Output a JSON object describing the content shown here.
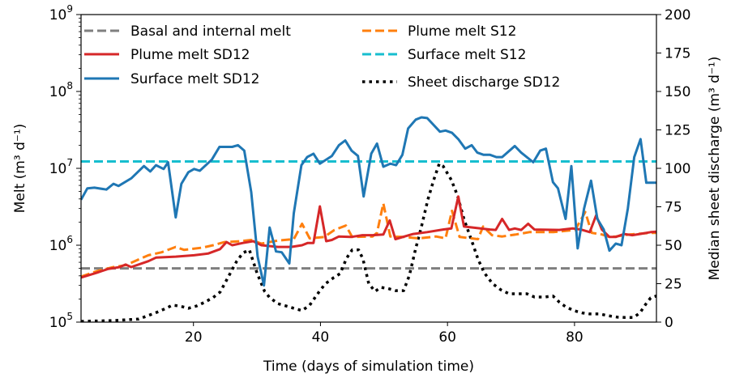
{
  "chart_data": {
    "type": "line",
    "xlabel": "Time (days of simulation time)",
    "ylabel": "Melt (m³ d⁻¹)",
    "ylabel_right": "Median sheet discharge (m³ d⁻¹)",
    "xlim": [
      2.3,
      92.9
    ],
    "ylim": [
      100000,
      1000000000
    ],
    "yscale": "log",
    "ylim_right": [
      0,
      200
    ],
    "xticks": [
      20,
      40,
      60,
      80
    ],
    "yticks": [
      5,
      6,
      7,
      8,
      9
    ],
    "yticks_right": [
      0,
      25,
      50,
      75,
      100,
      125,
      150,
      175,
      200
    ],
    "grid": false,
    "legend_placement": "top",
    "series": [
      {
        "name": "Basal and internal melt",
        "axis": "left",
        "color": "#7f7f7f",
        "style": "dashed",
        "points": [
          [
            2.3,
            500000
          ],
          [
            92.9,
            500000
          ]
        ]
      },
      {
        "name": "Plume melt SD12",
        "axis": "left",
        "color": "#d62728",
        "style": "solid",
        "points": [
          [
            2.3,
            380000
          ],
          [
            4.8,
            440000
          ],
          [
            6.5,
            490000
          ],
          [
            8.4,
            520000
          ],
          [
            9.3,
            560000
          ],
          [
            10.2,
            520000
          ],
          [
            12.9,
            620000
          ],
          [
            14.1,
            690000
          ],
          [
            17.2,
            710000
          ],
          [
            20.1,
            740000
          ],
          [
            22.3,
            780000
          ],
          [
            24.2,
            890000
          ],
          [
            25.2,
            1100000
          ],
          [
            26.1,
            1000000
          ],
          [
            27.8,
            1070000
          ],
          [
            29.4,
            1130000
          ],
          [
            30.7,
            1000000
          ],
          [
            33.3,
            950000
          ],
          [
            35.4,
            950000
          ],
          [
            37.1,
            1000000
          ],
          [
            38.0,
            1070000
          ],
          [
            38.9,
            1070000
          ],
          [
            39.9,
            3200000
          ],
          [
            40.9,
            1130000
          ],
          [
            41.8,
            1170000
          ],
          [
            42.9,
            1300000
          ],
          [
            44.8,
            1280000
          ],
          [
            46.6,
            1350000
          ],
          [
            48.2,
            1350000
          ],
          [
            49.9,
            1380000
          ],
          [
            50.9,
            2100000
          ],
          [
            51.8,
            1200000
          ],
          [
            54.6,
            1400000
          ],
          [
            56.8,
            1480000
          ],
          [
            59.3,
            1600000
          ],
          [
            60.6,
            1650000
          ],
          [
            61.7,
            4300000
          ],
          [
            62.6,
            1750000
          ],
          [
            65.2,
            1650000
          ],
          [
            66.7,
            1600000
          ],
          [
            67.6,
            1580000
          ],
          [
            68.6,
            2200000
          ],
          [
            69.7,
            1580000
          ],
          [
            70.6,
            1650000
          ],
          [
            71.6,
            1580000
          ],
          [
            72.7,
            1900000
          ],
          [
            73.7,
            1600000
          ],
          [
            77.6,
            1580000
          ],
          [
            79.7,
            1650000
          ],
          [
            81.0,
            1600000
          ],
          [
            82.4,
            1480000
          ],
          [
            83.4,
            2450000
          ],
          [
            84.3,
            1600000
          ],
          [
            85.5,
            1280000
          ],
          [
            86.5,
            1280000
          ],
          [
            87.8,
            1400000
          ],
          [
            89.1,
            1350000
          ],
          [
            90.3,
            1400000
          ],
          [
            92.0,
            1480000
          ],
          [
            92.9,
            1500000
          ]
        ]
      },
      {
        "name": "Surface melt SD12",
        "axis": "left",
        "color": "#1f77b4",
        "style": "solid",
        "points": [
          [
            2.3,
            3900000
          ],
          [
            3.3,
            5500000
          ],
          [
            4.4,
            5600000
          ],
          [
            6.3,
            5300000
          ],
          [
            7.4,
            6300000
          ],
          [
            8.2,
            5900000
          ],
          [
            10.2,
            7400000
          ],
          [
            12.2,
            10700000
          ],
          [
            13.2,
            9100000
          ],
          [
            14.1,
            11000000
          ],
          [
            15.3,
            9800000
          ],
          [
            16.0,
            12000000
          ],
          [
            17.2,
            2300000
          ],
          [
            18.1,
            6300000
          ],
          [
            19.2,
            8900000
          ],
          [
            20.1,
            9800000
          ],
          [
            21.0,
            9300000
          ],
          [
            22.9,
            13000000
          ],
          [
            24.1,
            19000000
          ],
          [
            26.1,
            19000000
          ],
          [
            27.0,
            20000000
          ],
          [
            28.0,
            17000000
          ],
          [
            29.1,
            4900000
          ],
          [
            30.1,
            710000
          ],
          [
            31.1,
            300000
          ],
          [
            32.0,
            1700000
          ],
          [
            33.0,
            830000
          ],
          [
            33.9,
            810000
          ],
          [
            35.1,
            580000
          ],
          [
            35.8,
            2600000
          ],
          [
            37.0,
            11000000
          ],
          [
            37.9,
            14000000
          ],
          [
            38.9,
            15500000
          ],
          [
            39.9,
            11500000
          ],
          [
            41.8,
            14500000
          ],
          [
            42.9,
            20000000
          ],
          [
            43.9,
            23000000
          ],
          [
            44.9,
            17000000
          ],
          [
            45.9,
            14500000
          ],
          [
            46.8,
            4300000
          ],
          [
            48.0,
            15500000
          ],
          [
            48.9,
            21000000
          ],
          [
            49.9,
            10500000
          ],
          [
            51.0,
            11500000
          ],
          [
            51.9,
            11000000
          ],
          [
            52.9,
            15000000
          ],
          [
            53.8,
            33000000
          ],
          [
            55.0,
            43000000
          ],
          [
            55.9,
            46000000
          ],
          [
            56.8,
            45000000
          ],
          [
            58.8,
            30000000
          ],
          [
            59.7,
            31000000
          ],
          [
            60.7,
            29000000
          ],
          [
            61.7,
            24000000
          ],
          [
            62.8,
            18000000
          ],
          [
            63.8,
            20000000
          ],
          [
            64.7,
            16000000
          ],
          [
            65.7,
            15000000
          ],
          [
            66.7,
            15000000
          ],
          [
            67.7,
            14000000
          ],
          [
            68.6,
            14000000
          ],
          [
            70.6,
            19500000
          ],
          [
            71.6,
            16000000
          ],
          [
            73.5,
            12000000
          ],
          [
            74.6,
            17000000
          ],
          [
            75.5,
            18000000
          ],
          [
            76.6,
            6600000
          ],
          [
            77.4,
            5500000
          ],
          [
            78.6,
            2200000
          ],
          [
            79.5,
            10700000
          ],
          [
            80.5,
            910000
          ],
          [
            81.5,
            3000000
          ],
          [
            82.6,
            6900000
          ],
          [
            83.6,
            2200000
          ],
          [
            84.6,
            1600000
          ],
          [
            85.5,
            850000
          ],
          [
            86.5,
            1050000
          ],
          [
            87.4,
            1000000
          ],
          [
            88.4,
            3000000
          ],
          [
            89.4,
            14000000
          ],
          [
            90.4,
            24000000
          ],
          [
            91.3,
            6500000
          ],
          [
            92.9,
            6500000
          ]
        ]
      },
      {
        "name": "Plume melt S12",
        "axis": "left",
        "color": "#ff7f0e",
        "style": "dashed",
        "points": [
          [
            2.3,
            390000
          ],
          [
            4.8,
            460000
          ],
          [
            7.4,
            520000
          ],
          [
            9.3,
            550000
          ],
          [
            12.9,
            740000
          ],
          [
            15.0,
            810000
          ],
          [
            17.2,
            950000
          ],
          [
            18.5,
            870000
          ],
          [
            21.4,
            930000
          ],
          [
            23.1,
            1000000
          ],
          [
            24.9,
            1100000
          ],
          [
            27.4,
            1130000
          ],
          [
            29.1,
            1170000
          ],
          [
            30.7,
            1050000
          ],
          [
            33.3,
            1150000
          ],
          [
            35.8,
            1200000
          ],
          [
            37.1,
            1900000
          ],
          [
            38.3,
            1230000
          ],
          [
            40.6,
            1280000
          ],
          [
            42.2,
            1580000
          ],
          [
            44.0,
            1800000
          ],
          [
            45.0,
            1280000
          ],
          [
            48.2,
            1300000
          ],
          [
            48.9,
            1450000
          ],
          [
            49.9,
            3500000
          ],
          [
            51.0,
            1300000
          ],
          [
            53.1,
            1280000
          ],
          [
            55.5,
            1230000
          ],
          [
            58.2,
            1300000
          ],
          [
            59.7,
            1230000
          ],
          [
            60.7,
            2800000
          ],
          [
            61.9,
            1280000
          ],
          [
            64.8,
            1200000
          ],
          [
            65.6,
            1750000
          ],
          [
            67.0,
            1350000
          ],
          [
            68.6,
            1300000
          ],
          [
            70.8,
            1380000
          ],
          [
            72.9,
            1480000
          ],
          [
            76.7,
            1480000
          ],
          [
            80.1,
            1580000
          ],
          [
            81.7,
            2700000
          ],
          [
            82.7,
            1450000
          ],
          [
            84.3,
            1380000
          ],
          [
            85.5,
            1280000
          ],
          [
            86.5,
            1300000
          ],
          [
            88.7,
            1380000
          ],
          [
            92.0,
            1450000
          ],
          [
            92.9,
            1450000
          ]
        ]
      },
      {
        "name": "Surface melt S12",
        "axis": "left",
        "color": "#17becf",
        "style": "dashed",
        "points": [
          [
            2.3,
            12300000
          ],
          [
            92.9,
            12300000
          ]
        ]
      },
      {
        "name": "Sheet discharge SD12",
        "axis": "right",
        "color": "#000000",
        "style": "dotted",
        "points": [
          [
            2.3,
            0.5
          ],
          [
            7.4,
            1
          ],
          [
            11.4,
            2
          ],
          [
            14.0,
            6
          ],
          [
            15.4,
            8.5
          ],
          [
            16.7,
            11
          ],
          [
            17.8,
            10.5
          ],
          [
            19.2,
            9
          ],
          [
            20.5,
            10.5
          ],
          [
            21.8,
            13
          ],
          [
            23.1,
            16
          ],
          [
            24.2,
            19.5
          ],
          [
            25.5,
            29.5
          ],
          [
            26.8,
            39.5
          ],
          [
            27.8,
            45
          ],
          [
            28.8,
            47
          ],
          [
            30.0,
            32
          ],
          [
            31.2,
            20
          ],
          [
            32.0,
            16
          ],
          [
            33.3,
            12
          ],
          [
            34.6,
            10.5
          ],
          [
            35.8,
            9
          ],
          [
            37.1,
            7.5
          ],
          [
            38.3,
            11
          ],
          [
            39.9,
            20.5
          ],
          [
            40.8,
            25
          ],
          [
            42.1,
            29
          ],
          [
            43.1,
            31.5
          ],
          [
            44.1,
            41.5
          ],
          [
            45.0,
            47
          ],
          [
            46.0,
            47
          ],
          [
            46.7,
            41
          ],
          [
            47.6,
            25
          ],
          [
            48.6,
            20
          ],
          [
            49.5,
            22.6
          ],
          [
            50.5,
            22
          ],
          [
            51.8,
            20.5
          ],
          [
            53.1,
            20.5
          ],
          [
            54.0,
            30.5
          ],
          [
            55.0,
            48
          ],
          [
            55.9,
            62
          ],
          [
            56.9,
            79.5
          ],
          [
            57.8,
            92
          ],
          [
            58.7,
            103
          ],
          [
            59.3,
            101.5
          ],
          [
            60.6,
            92.5
          ],
          [
            61.6,
            82
          ],
          [
            62.6,
            67
          ],
          [
            63.8,
            53
          ],
          [
            64.8,
            41
          ],
          [
            65.8,
            32
          ],
          [
            67.1,
            25
          ],
          [
            68.4,
            21
          ],
          [
            69.7,
            18.4
          ],
          [
            71.2,
            18.4
          ],
          [
            72.5,
            18.4
          ],
          [
            73.7,
            16.3
          ],
          [
            75.3,
            16.3
          ],
          [
            76.6,
            17
          ],
          [
            77.6,
            13
          ],
          [
            78.6,
            10
          ],
          [
            79.9,
            7.5
          ],
          [
            81.2,
            6
          ],
          [
            82.4,
            5.3
          ],
          [
            84.0,
            5.3
          ],
          [
            85.2,
            4.2
          ],
          [
            86.8,
            3.2
          ],
          [
            88.0,
            3
          ],
          [
            89.3,
            3
          ],
          [
            90.3,
            6
          ],
          [
            91.2,
            11.6
          ],
          [
            92.0,
            15.8
          ],
          [
            92.9,
            17
          ]
        ]
      }
    ]
  }
}
